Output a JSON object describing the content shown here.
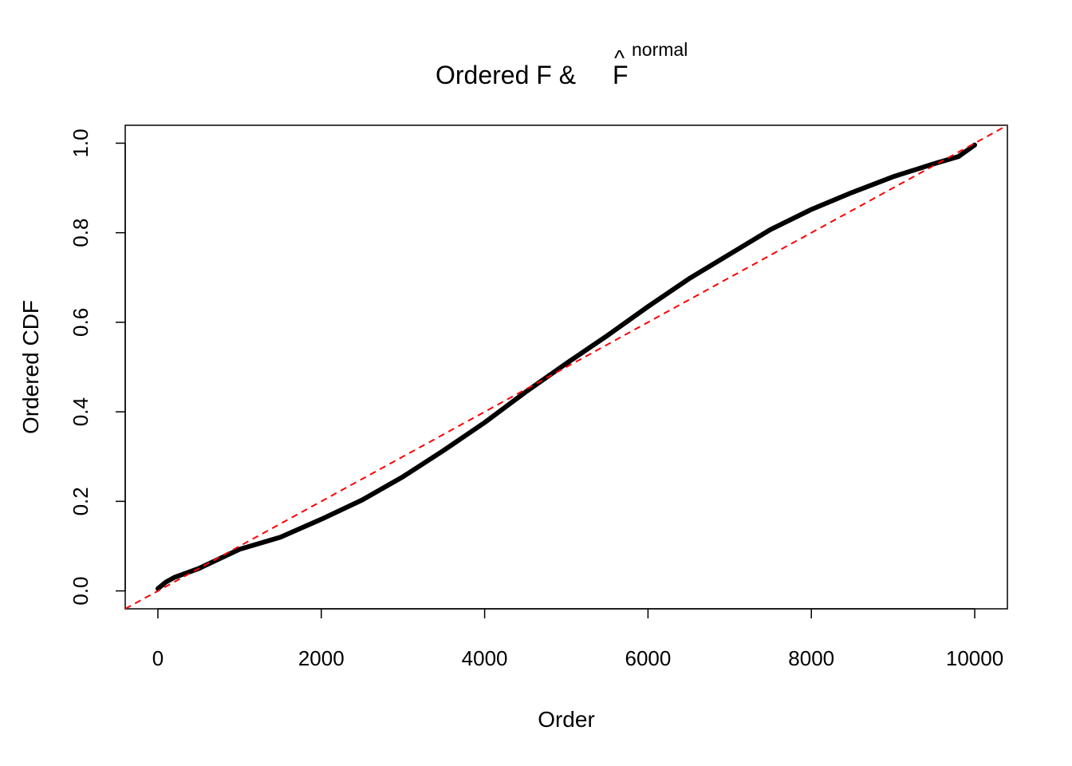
{
  "chart_data": {
    "type": "line",
    "title": "Ordered F & ",
    "title_symbol": "F",
    "title_accent": "^",
    "title_superscript": "normal",
    "x_label": "Order",
    "y_label": "Ordered CDF",
    "x": [
      0,
      100,
      200,
      500,
      1000,
      1500,
      2000,
      2500,
      3000,
      3500,
      4000,
      4500,
      5000,
      5500,
      6000,
      6500,
      7000,
      7500,
      8000,
      8500,
      9000,
      9500,
      9800,
      10000
    ],
    "series": [
      {
        "color": "#000000",
        "values": [
          0.005,
          0.02,
          0.03,
          0.05,
          0.093,
          0.12,
          0.16,
          0.203,
          0.255,
          0.314,
          0.376,
          0.444,
          0.508,
          0.57,
          0.635,
          0.697,
          0.752,
          0.807,
          0.852,
          0.89,
          0.925,
          0.954,
          0.97,
          0.996
        ]
      }
    ],
    "reference_line": {
      "color": "#ff0000",
      "slope": 0.0001,
      "intercept": 0
    },
    "xlim": [
      -400,
      10400
    ],
    "ylim": [
      -0.04,
      1.04
    ],
    "xticks": [
      0,
      2000,
      4000,
      6000,
      8000,
      10000
    ],
    "yticks": [
      {
        "value": 0,
        "label": "0.0"
      },
      {
        "value": 0.2,
        "label": "0.2"
      },
      {
        "value": 0.4,
        "label": "0.4"
      },
      {
        "value": 0.6,
        "label": "0.6"
      },
      {
        "value": 0.8,
        "label": "0.8"
      },
      {
        "value": 1,
        "label": "1.0"
      }
    ]
  }
}
